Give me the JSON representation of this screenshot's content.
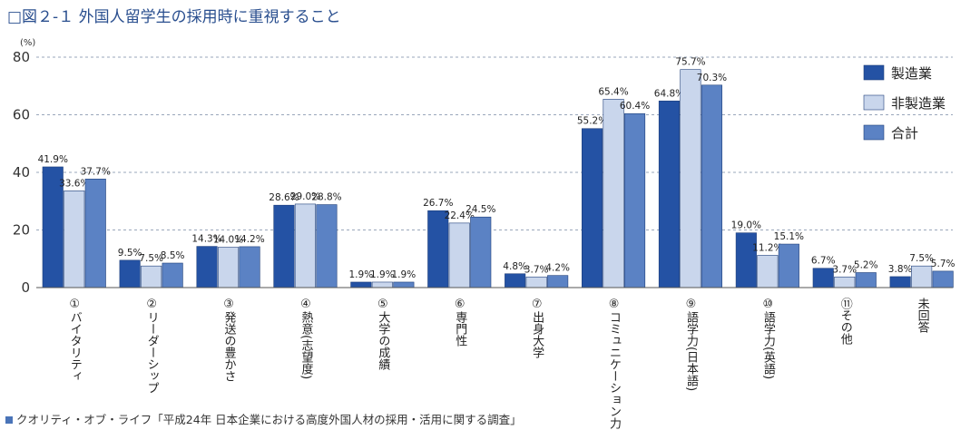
{
  "header": {
    "title": "□図２-１ 外国人留学生の採用時に重視すること"
  },
  "footer": {
    "source": "クオリティ・オブ・ライフ「平成24年 日本企業における高度外国人材の採用・活用に関する調査」"
  },
  "chart_data": {
    "type": "bar",
    "unit": "(%)",
    "ylim": [
      0,
      80
    ],
    "yticks": [
      0,
      20,
      40,
      60,
      80
    ],
    "grid": true,
    "legend_position": "top-right",
    "categories": [
      "①バイタリティ",
      "②リーダーシップ",
      "③発送の豊かさ",
      "④熱意(志望度)",
      "⑤大学の成績",
      "⑥専門性",
      "⑦出身大学",
      "⑧コミュニケーション力",
      "⑨語学力(日本語)",
      "⑩語学力(英語)",
      "⑪その他",
      "未回答"
    ],
    "series": [
      {
        "name": "製造業",
        "color": "#2452a4",
        "values": [
          41.9,
          9.5,
          14.3,
          28.6,
          1.9,
          26.7,
          4.8,
          55.2,
          64.8,
          19.0,
          6.7,
          3.8
        ]
      },
      {
        "name": "非製造業",
        "color": "#c9d6ec",
        "values": [
          33.6,
          7.5,
          14.0,
          29.0,
          1.9,
          22.4,
          3.7,
          65.4,
          75.7,
          11.2,
          3.7,
          7.5
        ]
      },
      {
        "name": "合計",
        "color": "#5b82c4",
        "values": [
          37.7,
          8.5,
          14.2,
          28.8,
          1.9,
          24.5,
          4.2,
          60.4,
          70.3,
          15.1,
          5.2,
          5.7
        ]
      }
    ]
  }
}
